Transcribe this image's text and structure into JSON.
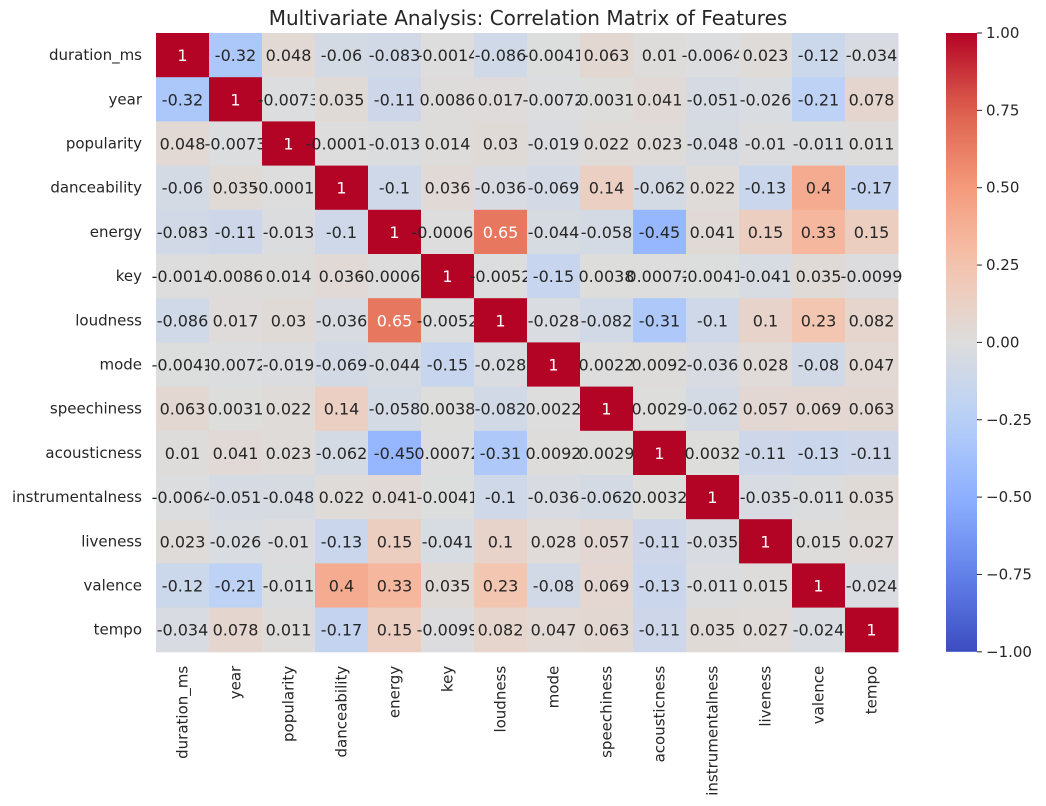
{
  "chart_data": {
    "type": "heatmap",
    "title": "Multivariate Analysis: Correlation Matrix of Features",
    "labels": [
      "duration_ms",
      "year",
      "popularity",
      "danceability",
      "energy",
      "key",
      "loudness",
      "mode",
      "speechiness",
      "acousticness",
      "instrumentalness",
      "liveness",
      "valence",
      "tempo"
    ],
    "matrix": [
      [
        1,
        -0.32,
        0.048,
        -0.06,
        -0.083,
        -0.0014,
        -0.086,
        -0.0041,
        0.063,
        0.01,
        -0.0064,
        0.023,
        -0.12,
        -0.034
      ],
      [
        -0.32,
        1,
        -0.0073,
        0.035,
        -0.11,
        0.0086,
        0.017,
        -0.0072,
        0.0031,
        0.041,
        -0.051,
        -0.026,
        -0.21,
        0.078
      ],
      [
        0.048,
        -0.0073,
        1,
        -0.00014,
        -0.013,
        0.014,
        0.03,
        -0.019,
        0.022,
        0.023,
        -0.048,
        -0.01,
        -0.011,
        0.011
      ],
      [
        -0.06,
        0.035,
        -0.00014,
        1,
        -0.1,
        0.036,
        -0.036,
        -0.069,
        0.14,
        -0.062,
        0.022,
        -0.13,
        0.4,
        -0.17
      ],
      [
        -0.083,
        -0.11,
        -0.013,
        -0.1,
        1,
        -0.00064,
        0.65,
        -0.044,
        -0.058,
        -0.45,
        0.041,
        0.15,
        0.33,
        0.15
      ],
      [
        -0.0014,
        0.0086,
        0.014,
        0.036,
        -0.00064,
        1,
        -0.0052,
        -0.15,
        0.0038,
        0.00072,
        -0.0041,
        -0.041,
        0.035,
        -0.0099
      ],
      [
        -0.086,
        0.017,
        0.03,
        -0.036,
        0.65,
        -0.0052,
        1,
        -0.028,
        -0.082,
        -0.31,
        -0.1,
        0.1,
        0.23,
        0.082
      ],
      [
        -0.0041,
        -0.0072,
        -0.019,
        -0.069,
        -0.044,
        -0.15,
        -0.028,
        1,
        0.0022,
        0.0092,
        -0.036,
        0.028,
        -0.08,
        0.047
      ],
      [
        0.063,
        0.0031,
        0.022,
        0.14,
        -0.058,
        0.0038,
        -0.082,
        0.0022,
        1,
        0.0029,
        -0.062,
        0.057,
        0.069,
        0.063
      ],
      [
        0.01,
        0.041,
        0.023,
        -0.062,
        -0.45,
        0.00072,
        -0.31,
        0.0092,
        0.0029,
        1,
        0.0032,
        -0.11,
        -0.13,
        -0.11
      ],
      [
        -0.0064,
        -0.051,
        -0.048,
        0.022,
        0.041,
        -0.0041,
        -0.1,
        -0.036,
        -0.062,
        0.0032,
        1,
        -0.035,
        -0.011,
        0.035
      ],
      [
        0.023,
        -0.026,
        -0.01,
        -0.13,
        0.15,
        -0.041,
        0.1,
        0.028,
        0.057,
        -0.11,
        -0.035,
        1,
        0.015,
        0.027
      ],
      [
        -0.12,
        -0.21,
        -0.011,
        0.4,
        0.33,
        0.035,
        0.23,
        -0.08,
        0.069,
        -0.13,
        -0.011,
        0.015,
        1,
        -0.024
      ],
      [
        -0.034,
        0.078,
        0.011,
        -0.17,
        0.15,
        -0.0099,
        0.082,
        0.047,
        0.063,
        -0.11,
        0.035,
        0.027,
        -0.024,
        1
      ]
    ],
    "annotations": [
      [
        "1",
        "-0.32",
        "0.048",
        "-0.06",
        "-0.083",
        "-0.0014",
        "-0.086",
        "-0.0041",
        "0.063",
        "0.01",
        "-0.0064",
        "0.023",
        "-0.12",
        "-0.034"
      ],
      [
        "-0.32",
        "1",
        "-0.0073",
        "0.035",
        "-0.11",
        "0.0086",
        "0.017",
        "-0.0072",
        "0.0031",
        "0.041",
        "-0.051",
        "-0.026",
        "-0.21",
        "0.078"
      ],
      [
        "0.048",
        "-0.0073",
        "1",
        "-0.00014",
        "-0.013",
        "0.014",
        "0.03",
        "-0.019",
        "0.022",
        "0.023",
        "-0.048",
        "-0.01",
        "-0.011",
        "0.011"
      ],
      [
        "-0.06",
        "0.035",
        "-0.00014",
        "1",
        "-0.1",
        "0.036",
        "-0.036",
        "-0.069",
        "0.14",
        "-0.062",
        "0.022",
        "-0.13",
        "0.4",
        "-0.17"
      ],
      [
        "-0.083",
        "-0.11",
        "-0.013",
        "-0.1",
        "1",
        "-0.00064",
        "0.65",
        "-0.044",
        "-0.058",
        "-0.45",
        "0.041",
        "0.15",
        "0.33",
        "0.15"
      ],
      [
        "-0.0014",
        "0.0086",
        "0.014",
        "0.036",
        "-0.00064",
        "1",
        "-0.0052",
        "-0.15",
        "0.0038",
        "0.00072",
        "-0.0041",
        "-0.041",
        "0.035",
        "-0.0099"
      ],
      [
        "-0.086",
        "0.017",
        "0.03",
        "-0.036",
        "0.65",
        "-0.0052",
        "1",
        "-0.028",
        "-0.082",
        "-0.31",
        "-0.1",
        "0.1",
        "0.23",
        "0.082"
      ],
      [
        "-0.0041",
        "-0.0072",
        "-0.019",
        "-0.069",
        "-0.044",
        "-0.15",
        "-0.028",
        "1",
        "0.0022",
        "0.0092",
        "-0.036",
        "0.028",
        "-0.08",
        "0.047"
      ],
      [
        "0.063",
        "0.0031",
        "0.022",
        "0.14",
        "-0.058",
        "0.0038",
        "-0.082",
        "0.0022",
        "1",
        "0.0029",
        "-0.062",
        "0.057",
        "0.069",
        "0.063"
      ],
      [
        "0.01",
        "0.041",
        "0.023",
        "-0.062",
        "-0.45",
        "0.00072",
        "-0.31",
        "0.0092",
        "0.0029",
        "1",
        "0.0032",
        "-0.11",
        "-0.13",
        "-0.11"
      ],
      [
        "-0.0064",
        "-0.051",
        "-0.048",
        "0.022",
        "0.041",
        "-0.0041",
        "-0.1",
        "-0.036",
        "-0.062",
        "0.0032",
        "1",
        "-0.035",
        "-0.011",
        "0.035"
      ],
      [
        "0.023",
        "-0.026",
        "-0.01",
        "-0.13",
        "0.15",
        "-0.041",
        "0.1",
        "0.028",
        "0.057",
        "-0.11",
        "-0.035",
        "1",
        "0.015",
        "0.027"
      ],
      [
        "-0.12",
        "-0.21",
        "-0.011",
        "0.4",
        "0.33",
        "0.035",
        "0.23",
        "-0.08",
        "0.069",
        "-0.13",
        "-0.011",
        "0.015",
        "1",
        "-0.024"
      ],
      [
        "-0.034",
        "0.078",
        "0.011",
        "-0.17",
        "0.15",
        "-0.0099",
        "0.082",
        "0.047",
        "0.063",
        "-0.11",
        "0.035",
        "0.027",
        "-0.024",
        "1"
      ]
    ],
    "colormap": "coolwarm",
    "vmin": -1.0,
    "vmax": 1.0,
    "colorbar_ticks": [
      1.0,
      0.75,
      0.5,
      0.25,
      0.0,
      -0.25,
      -0.5,
      -0.75,
      -1.0
    ],
    "colorbar_tick_labels": [
      "1.00",
      "0.75",
      "0.50",
      "0.25",
      "0.00",
      "−0.25",
      "−0.50",
      "−0.75",
      "−1.00"
    ],
    "xlabel": "",
    "ylabel": ""
  }
}
